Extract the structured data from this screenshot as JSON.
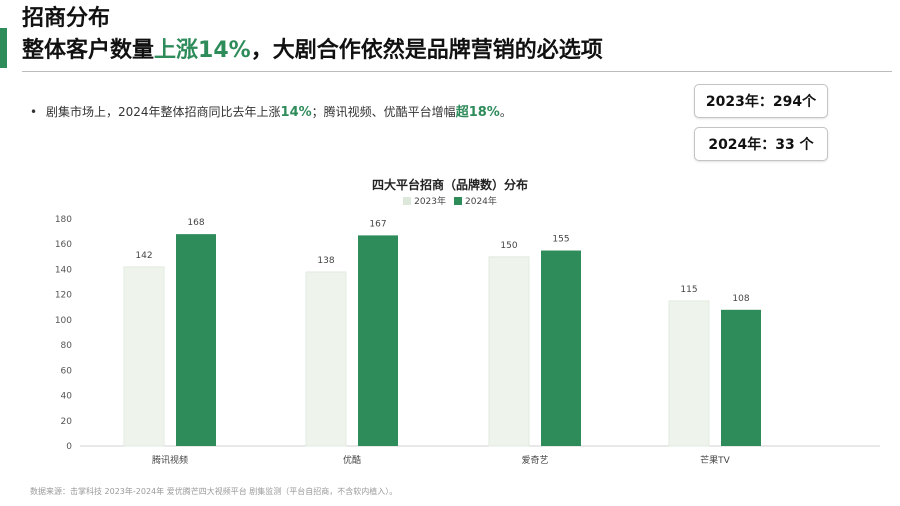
{
  "header": {
    "title": "招商分布",
    "subtitle_prefix": "整体客户数量",
    "subtitle_highlight": "上涨14%",
    "subtitle_suffix": "，大剧合作依然是品牌营销的必选项"
  },
  "bullet": {
    "dot": "•",
    "text_1": "剧集市场上，2024年整体招商同比去年上涨",
    "hl_1": "14%",
    "text_2": "；腾讯视频、优酷平台增幅",
    "hl_2": "超18%",
    "text_3": "。"
  },
  "stats": [
    {
      "text": "2023年：294个"
    },
    {
      "text": "2024年：33  个"
    }
  ],
  "footnote": "数据来源：击掌科技 2023年-2024年 爱优腾芒四大视频平台 剧集监测（平台自招商，不含软内植入）。",
  "colors": {
    "accent": "#2e8b5a",
    "series_2023": "#eef3ec",
    "series_2024": "#2e8b5a",
    "axis_text": "#555555"
  },
  "chart_data": {
    "type": "bar",
    "title": "四大平台招商（品牌数）分布",
    "categories": [
      "腾讯视频",
      "优酷",
      "爱奇艺",
      "芒果TV"
    ],
    "series": [
      {
        "name": "2023年",
        "values": [
          142,
          138,
          150,
          115
        ]
      },
      {
        "name": "2024年",
        "values": [
          168,
          167,
          155,
          108
        ]
      }
    ],
    "ylim": [
      0,
      180
    ],
    "yticks": [
      0,
      20,
      40,
      60,
      80,
      100,
      120,
      140,
      160,
      180
    ],
    "legend_position": "top-center",
    "grid": false
  }
}
